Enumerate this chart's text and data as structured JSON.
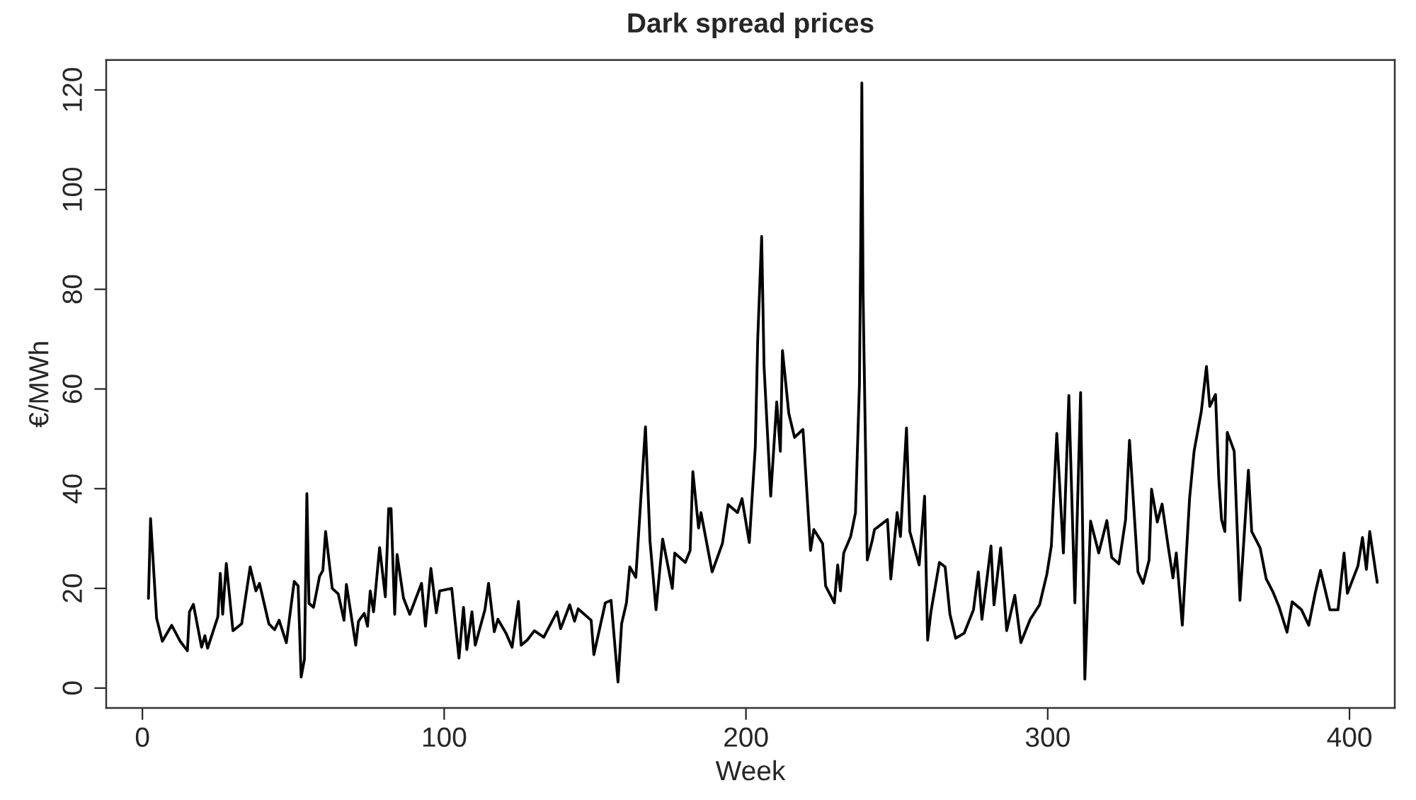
{
  "chart_data": {
    "type": "line",
    "title": "Dark spread prices",
    "xlabel": "Week",
    "ylabel": "€/MWh",
    "xlim": [
      -12,
      415
    ],
    "ylim": [
      -4,
      126
    ],
    "xticks": [
      0,
      100,
      200,
      300,
      400
    ],
    "yticks": [
      0,
      20,
      40,
      60,
      80,
      100,
      120
    ],
    "grid": false,
    "legend": false,
    "series": [
      {
        "color": "#000000",
        "x": [
          2,
          2.7,
          4.7,
          6.6,
          9.7,
          12.5,
          14.9,
          15.6,
          16.9,
          19.6,
          20.7,
          21.6,
          25,
          25.8,
          26.6,
          27.8,
          30,
          32.9,
          35.7,
          37.6,
          38.8,
          41.9,
          43.8,
          45.3,
          47.7,
          50.3,
          51.6,
          52.6,
          53.7,
          54.5,
          55.2,
          56.7,
          58.7,
          59.8,
          60.7,
          62.9,
          64.9,
          66.8,
          67.6,
          70.7,
          71.6,
          73.5,
          74.6,
          75.5,
          76.6,
          78.6,
          80.5,
          81.6,
          82.4,
          83.6,
          84.4,
          86.5,
          88.6,
          92.5,
          93.8,
          95.6,
          97.4,
          98.5,
          102.5,
          104.9,
          106.4,
          107.5,
          109.2,
          110.3,
          113.5,
          114.7,
          116.6,
          117.8,
          120.5,
          122.5,
          124.6,
          125.5,
          127.5,
          129.9,
          133,
          137.4,
          138.6,
          141.6,
          143.2,
          144.4,
          148.7,
          149.6,
          153.4,
          155.3,
          157.6,
          158.8,
          160.4,
          161.5,
          163.5,
          166.7,
          168.2,
          170.2,
          172.4,
          175.6,
          176.4,
          179.9,
          181.5,
          182.4,
          184.3,
          185.1,
          188.8,
          192.2,
          194.1,
          197.2,
          198.7,
          201.1,
          203.1,
          203.9,
          205.2,
          206,
          208.2,
          210.2,
          211.4,
          212.1,
          214.2,
          216.1,
          218.9,
          221.4,
          222.5,
          225.4,
          226.4,
          229.3,
          230.4,
          231.3,
          232.4,
          234.7,
          236.3,
          237.6,
          238.2,
          238.4,
          238.8,
          240.2,
          241.8,
          242.6,
          246.9,
          248,
          250.1,
          251.2,
          253.2,
          254.3,
          257.4,
          259.2,
          260.2,
          261.3,
          264.1,
          266,
          267.6,
          269.5,
          272.3,
          275.4,
          277,
          278.2,
          281.2,
          282.2,
          284.4,
          286.4,
          289.1,
          291.1,
          294.2,
          297.3,
          299.7,
          301.2,
          303,
          305.2,
          307,
          309,
          310.9,
          312.3,
          314.2,
          316.9,
          319.6,
          321.2,
          323.6,
          325.8,
          327.1,
          329.9,
          331.6,
          333.6,
          334.4,
          336.3,
          337.9,
          339.9,
          341.5,
          342.6,
          344.6,
          347,
          348.5,
          350.9,
          352.6,
          353.7,
          355.6,
          356.7,
          357.6,
          358.7,
          359.5,
          361.8,
          363.7,
          366.5,
          367.6,
          370.4,
          372.4,
          374.7,
          376.6,
          379.3,
          381,
          384.1,
          386.5,
          388.7,
          390.4,
          393.5,
          396.2,
          398.2,
          399.3,
          402.8,
          404.3,
          405.6,
          406.7,
          409.2
        ],
        "values": [
          18,
          34,
          14,
          9.4,
          12.6,
          9.4,
          7.5,
          15.3,
          16.8,
          8.2,
          10.5,
          8,
          14.3,
          23,
          14.8,
          25,
          11.5,
          12.9,
          24.3,
          19.5,
          21,
          12.9,
          11.7,
          13.6,
          9.1,
          21.4,
          20.5,
          2.2,
          5.8,
          39,
          17,
          16.2,
          22.4,
          23.6,
          31.4,
          20,
          18.9,
          13.6,
          20.8,
          8.6,
          13.4,
          15,
          12.4,
          19.5,
          15.3,
          28.2,
          18.3,
          36,
          36,
          14.8,
          26.8,
          18.1,
          14.8,
          21,
          12.4,
          24,
          15.1,
          19.5,
          20,
          6,
          16.2,
          7.7,
          15.3,
          8.6,
          15.7,
          21,
          11.3,
          13.8,
          11,
          8.2,
          17.4,
          8.6,
          9.6,
          11.5,
          10.2,
          15.3,
          11.9,
          16.7,
          13.4,
          15.9,
          13.6,
          6.7,
          17.1,
          17.6,
          1.2,
          12.9,
          17.1,
          24.3,
          22.2,
          52.4,
          29.5,
          15.7,
          29.9,
          20,
          27.1,
          25.2,
          27.6,
          43.4,
          32.1,
          35.2,
          23.3,
          29,
          36.8,
          35.2,
          38,
          29.2,
          48.4,
          70,
          90.6,
          64.5,
          38.5,
          57.4,
          47.5,
          67.7,
          55.1,
          50.3,
          51.9,
          27.6,
          31.8,
          29,
          20.5,
          17.1,
          24.7,
          19.5,
          27.1,
          30.4,
          35.2,
          60.8,
          100.6,
          121.4,
          79.7,
          25.7,
          29.5,
          31.8,
          33.8,
          21.9,
          35.2,
          30.4,
          52.2,
          31.4,
          24.7,
          38.5,
          9.6,
          15.3,
          25.2,
          24.3,
          14.8,
          10,
          11,
          15.7,
          23.3,
          13.8,
          28.5,
          16.7,
          28.1,
          11.5,
          18.6,
          9.1,
          13.8,
          16.7,
          22.8,
          28.5,
          51.1,
          27.1,
          58.7,
          17.1,
          59.3,
          1.8,
          33.5,
          27.1,
          33.6,
          26.2,
          24.9,
          33.8,
          49.7,
          23.3,
          21,
          25.7,
          39.9,
          33.3,
          36.9,
          28.5,
          22.1,
          27.1,
          12.6,
          38,
          47.5,
          55.5,
          64.5,
          56.5,
          58.9,
          41.8,
          33.8,
          31.4,
          51.3,
          47.5,
          17.6,
          43.7,
          31.4,
          28.1,
          21.9,
          19.2,
          16.4,
          11.2,
          17.3,
          15.7,
          12.6,
          19.2,
          23.6,
          15.7,
          15.7,
          27.1,
          19,
          24.5,
          30.2,
          23.8,
          31.4,
          21.2
        ]
      }
    ]
  }
}
